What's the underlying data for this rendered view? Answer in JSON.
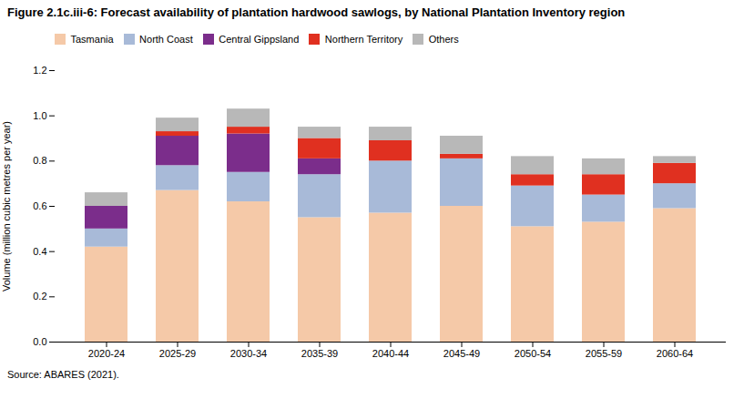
{
  "chart_data": {
    "type": "bar",
    "stacked": true,
    "title": "Figure 2.1c.iii-6: Forecast availability of plantation hardwood sawlogs, by National Plantation Inventory region",
    "ylabel": "Volume (million cubic metres per year)",
    "source": "Source: ABARES (2021).",
    "categories": [
      "2020-24",
      "2025-29",
      "2030-34",
      "2035-39",
      "2040-44",
      "2045-49",
      "2050-54",
      "2055-59",
      "2060-64"
    ],
    "series": [
      {
        "name": "Tasmania",
        "color": "#F5C9A8",
        "values": [
          0.42,
          0.67,
          0.62,
          0.55,
          0.57,
          0.6,
          0.51,
          0.53,
          0.59
        ]
      },
      {
        "name": "North Coast",
        "color": "#A8BAD8",
        "values": [
          0.08,
          0.11,
          0.13,
          0.19,
          0.23,
          0.21,
          0.18,
          0.12,
          0.11
        ]
      },
      {
        "name": "Central Gippsland",
        "color": "#7B2D8B",
        "values": [
          0.1,
          0.13,
          0.17,
          0.07,
          0.0,
          0.0,
          0.0,
          0.0,
          0.0
        ]
      },
      {
        "name": "Northern Territory",
        "color": "#E03020",
        "values": [
          0.0,
          0.02,
          0.03,
          0.09,
          0.09,
          0.02,
          0.05,
          0.09,
          0.09
        ]
      },
      {
        "name": "Others",
        "color": "#B8B8B8",
        "values": [
          0.06,
          0.06,
          0.08,
          0.05,
          0.06,
          0.08,
          0.08,
          0.07,
          0.03
        ]
      }
    ],
    "ylim": [
      0,
      1.2
    ],
    "yticks": [
      {
        "value": 0,
        "label": "0.0"
      },
      0.2,
      0.4,
      0.6,
      0.8,
      {
        "value": 1,
        "label": "1.0"
      },
      1.2
    ],
    "grid": false,
    "legend": "top"
  }
}
